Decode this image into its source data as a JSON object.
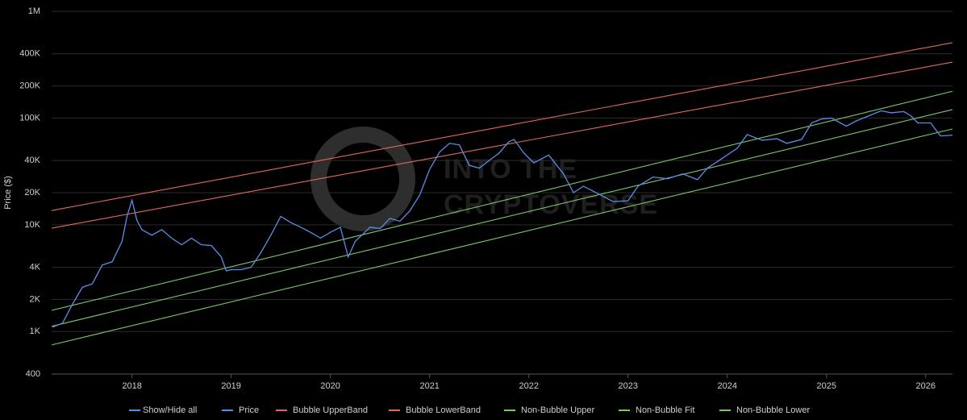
{
  "chart_data": {
    "type": "line",
    "y_label": "Price ($)",
    "watermark": [
      "INTO THE",
      "CRYPTOVERSE"
    ],
    "legend_toggle": "Show/Hide all",
    "log_y": true,
    "grid": true,
    "legend": "bottom",
    "xlim": [
      2017.19,
      2026.27
    ],
    "xticks": [
      2018,
      2019,
      2020,
      2021,
      2022,
      2023,
      2024,
      2025,
      2026
    ],
    "ylim": [
      400,
      1000000
    ],
    "yticks": [
      400,
      {
        "value": 1000,
        "label": "1K"
      },
      {
        "value": 2000,
        "label": "2K"
      },
      {
        "value": 4000,
        "label": "4K"
      },
      {
        "value": 10000,
        "label": "10K"
      },
      {
        "value": 20000,
        "label": "20K"
      },
      {
        "value": 40000,
        "label": "40K"
      },
      {
        "value": 100000,
        "label": "100K"
      },
      {
        "value": 200000,
        "label": "200K"
      },
      {
        "value": 400000,
        "label": "400K"
      },
      {
        "value": 1000000,
        "label": "1M"
      }
    ],
    "series": [
      {
        "name": "Price",
        "color": "#5b8ee6",
        "x": [
          2017.2,
          2017.3,
          2017.4,
          2017.5,
          2017.6,
          2017.7,
          2017.8,
          2017.9,
          2017.95,
          2018.0,
          2018.05,
          2018.1,
          2018.2,
          2018.3,
          2018.4,
          2018.5,
          2018.6,
          2018.7,
          2018.8,
          2018.9,
          2018.95,
          2019.0,
          2019.1,
          2019.2,
          2019.3,
          2019.4,
          2019.5,
          2019.6,
          2019.7,
          2019.8,
          2019.9,
          2020.0,
          2020.1,
          2020.18,
          2020.25,
          2020.4,
          2020.5,
          2020.6,
          2020.7,
          2020.8,
          2020.9,
          2021.0,
          2021.1,
          2021.2,
          2021.3,
          2021.4,
          2021.5,
          2021.6,
          2021.7,
          2021.8,
          2021.85,
          2021.95,
          2022.05,
          2022.2,
          2022.35,
          2022.45,
          2022.55,
          2022.7,
          2022.85,
          2023.0,
          2023.1,
          2023.25,
          2023.4,
          2023.55,
          2023.7,
          2023.8,
          2023.95,
          2024.1,
          2024.2,
          2024.35,
          2024.5,
          2024.6,
          2024.75,
          2024.85,
          2024.95,
          2025.05,
          2025.2,
          2025.3,
          2025.45,
          2025.55,
          2025.65,
          2025.78,
          2025.85,
          2025.92,
          2026.05,
          2026.1,
          2026.15,
          2026.27
        ],
        "values": [
          1100,
          1200,
          1800,
          2600,
          2800,
          4200,
          4500,
          7000,
          12000,
          17000,
          11000,
          9000,
          8000,
          9000,
          7500,
          6500,
          7500,
          6500,
          6400,
          5000,
          3700,
          3800,
          3800,
          4000,
          5500,
          8000,
          12000,
          10500,
          9500,
          8500,
          7500,
          8500,
          9500,
          5000,
          7000,
          9500,
          9200,
          11500,
          10800,
          13500,
          19000,
          33000,
          48000,
          58000,
          56000,
          36000,
          34000,
          40000,
          47000,
          60000,
          63000,
          47000,
          38000,
          45000,
          30000,
          20000,
          23000,
          19500,
          16500,
          16800,
          23000,
          28000,
          27000,
          30000,
          26500,
          34000,
          42000,
          52000,
          70000,
          62000,
          64000,
          58000,
          63000,
          90000,
          98000,
          100000,
          84000,
          94000,
          107000,
          117000,
          112000,
          115000,
          105000,
          90000,
          90000,
          78000,
          68000,
          69000
        ]
      },
      {
        "name": "Bubble UpperBand",
        "color": "#e06b5a",
        "x": [
          2017.19,
          2026.27
        ],
        "values": [
          13600,
          508000
        ]
      },
      {
        "name": "Bubble LowerBand",
        "color": "#e06b5a",
        "x": [
          2017.19,
          2026.27
        ],
        "values": [
          9300,
          334000
        ]
      },
      {
        "name": "Non-Bubble Upper",
        "color": "#7cc76a",
        "x": [
          2017.19,
          2026.27
        ],
        "values": [
          1580,
          178000
        ]
      },
      {
        "name": "Non-Bubble Fit",
        "color": "#7cc76a",
        "x": [
          2017.19,
          2026.27
        ],
        "values": [
          1120,
          120000
        ]
      },
      {
        "name": "Non-Bubble Lower",
        "color": "#7cc76a",
        "x": [
          2017.19,
          2026.27
        ],
        "values": [
          750,
          79000
        ]
      }
    ]
  }
}
